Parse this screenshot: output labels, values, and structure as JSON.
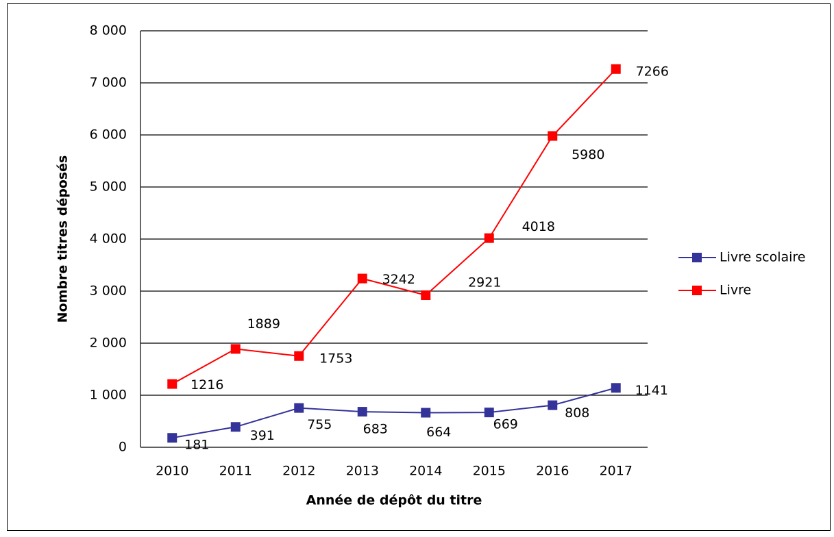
{
  "chart_data": {
    "type": "line",
    "x_label": "Année de dépôt du titre",
    "y_label": "Nombre  titres déposés",
    "categories": [
      "2010",
      "2011",
      "2012",
      "2013",
      "2014",
      "2015",
      "2016",
      "2017"
    ],
    "series": [
      {
        "name": "Livre scolaire",
        "color": "#333399",
        "values": [
          181,
          391,
          755,
          683,
          664,
          669,
          808,
          1141
        ]
      },
      {
        "name": "Livre",
        "color": "#ff0000",
        "values": [
          1216,
          1889,
          1753,
          3242,
          2921,
          4018,
          5980,
          7266
        ]
      }
    ],
    "ylim": [
      0,
      8000
    ],
    "yticks": [
      0,
      {
        "value": 1000,
        "label": "1 000"
      },
      {
        "value": 2000,
        "label": "2 000"
      },
      {
        "value": 3000,
        "label": "3 000"
      },
      {
        "value": 4000,
        "label": "4 000"
      },
      {
        "value": 5000,
        "label": "5 000"
      },
      {
        "value": 6000,
        "label": "6 000"
      },
      {
        "value": 7000,
        "label": "7 000"
      },
      {
        "value": 8000,
        "label": "8 000"
      }
    ],
    "grid": true,
    "legend": "right"
  }
}
